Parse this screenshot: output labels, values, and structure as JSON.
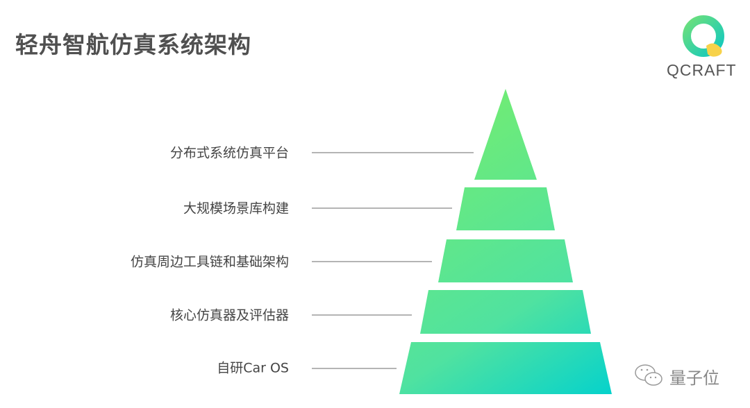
{
  "title": "轻舟智航仿真系统架构",
  "logo": {
    "text": "QCRAFT"
  },
  "pyramid": {
    "layers": [
      {
        "label": "分布式系统仿真平台"
      },
      {
        "label": "大规模场景库构建"
      },
      {
        "label": "仿真周边工具链和基础架构"
      },
      {
        "label": "核心仿真器及评估器"
      },
      {
        "label": "自研Car OS"
      }
    ],
    "colors": {
      "top": "#6EEB78",
      "bottom": "#05D2CC",
      "line": "#888888"
    }
  },
  "watermark": {
    "text": "量子位",
    "icon": "wechat-icon"
  }
}
